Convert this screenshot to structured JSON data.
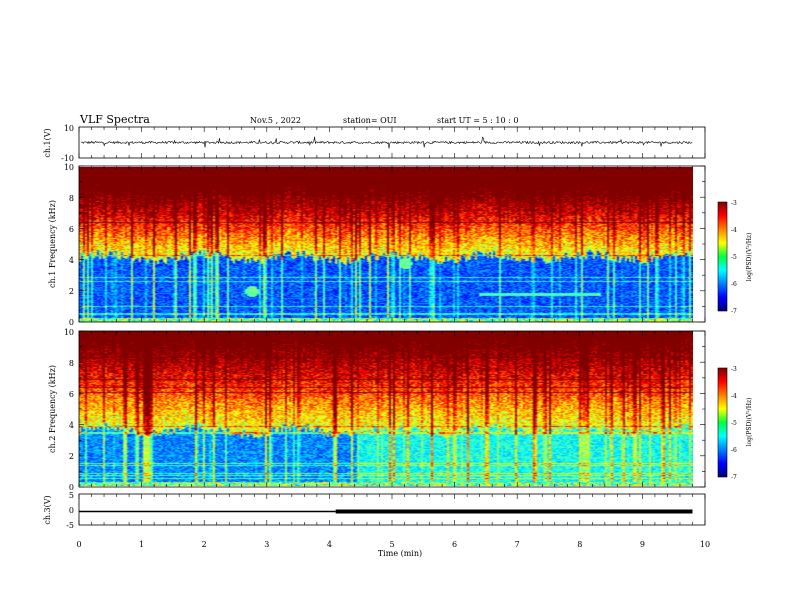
{
  "header": {
    "title": "VLF Spectra",
    "date": "Nov.5 , 2022",
    "station": "station= OUI",
    "start": "start UT = 5 : 10 : 0"
  },
  "chart_data": [
    {
      "type": "line",
      "panel": "waveform",
      "ylabel": "ch.1(V)",
      "ylim": [
        -10,
        10
      ],
      "yticks": [
        "10",
        "-10"
      ],
      "baseline": 0,
      "description_values": {
        "typical_amplitude": 1.5,
        "spike_amplitude": 4
      }
    },
    {
      "type": "heatmap",
      "panel": "spectrogram-ch1",
      "ylabel": "ch.1 Frequency (kHz)",
      "xlim": [
        0,
        10
      ],
      "ylim": [
        0,
        10
      ],
      "yticks": [
        "0",
        "2",
        "4",
        "6",
        "8",
        "10"
      ],
      "colorbar": {
        "label": "log(PSD)(V²/Hz)",
        "range": [
          -7,
          -3
        ],
        "ticks": [
          "-3",
          "-4",
          "-5",
          "-6",
          "-7"
        ]
      },
      "data_end_min": 9.8,
      "cutoff_khz": 4.2,
      "features": [
        {
          "t": 2.8,
          "f": 2.0
        },
        {
          "t": 5.3,
          "f": 3.8
        },
        {
          "t_start": 6.5,
          "t_end": 8.5,
          "f": 1.8
        }
      ]
    },
    {
      "type": "heatmap",
      "panel": "spectrogram-ch2",
      "ylabel": "ch.2 Frequency (kHz)",
      "xlim": [
        0,
        10
      ],
      "ylim": [
        0,
        10
      ],
      "yticks": [
        "0",
        "2",
        "4",
        "6",
        "8",
        "10"
      ],
      "colorbar": {
        "label": "log(PSD)(V²/Hz)",
        "range": [
          -7,
          -3
        ],
        "ticks": [
          "-3",
          "-4",
          "-5",
          "-6",
          "-7"
        ]
      },
      "data_end_min": 9.8,
      "cutoff_khz": 3.6
    },
    {
      "type": "line",
      "panel": "ch3",
      "ylabel": "ch.3(V)",
      "ylim": [
        -5,
        5
      ],
      "yticks": [
        "5",
        "0",
        "-5"
      ],
      "xlabel": "Time (min)",
      "xticks": [
        "0",
        "1",
        "2",
        "3",
        "4",
        "5",
        "6",
        "7",
        "8",
        "9",
        "10"
      ],
      "series": [
        {
          "x": [
            0,
            4.1
          ],
          "y": [
            0,
            0
          ],
          "thickness": "thin"
        },
        {
          "x": [
            4.1,
            9.8
          ],
          "y": [
            0,
            0
          ],
          "thickness": "thick"
        }
      ]
    }
  ]
}
